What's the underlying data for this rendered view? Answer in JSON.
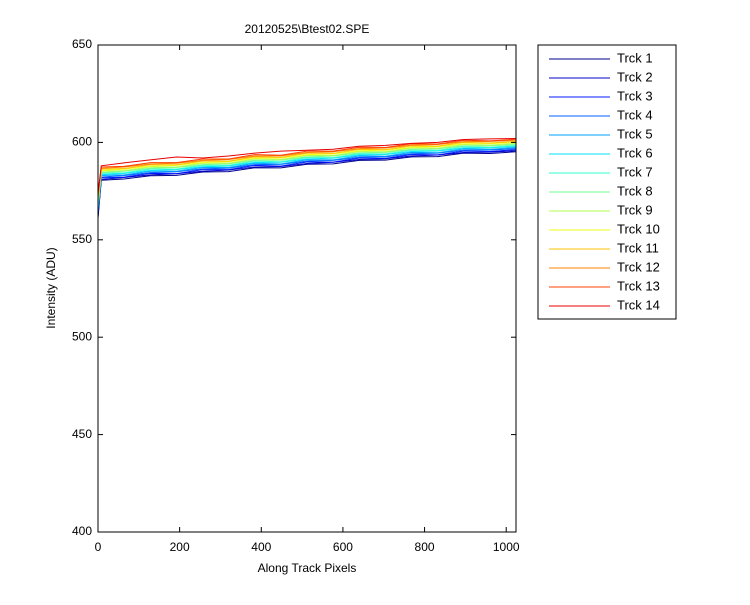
{
  "chart_data": {
    "type": "line",
    "title": "20120525\\Btest02.SPE",
    "x_label": "Along Track Pixels",
    "y_label": "Intensity (ADU)",
    "x": [
      0,
      8,
      64,
      128,
      192,
      256,
      320,
      384,
      448,
      512,
      576,
      640,
      704,
      768,
      832,
      896,
      960,
      1024
    ],
    "xlim": [
      0,
      1024
    ],
    "xticks": [
      0,
      200,
      400,
      600,
      800,
      1000
    ],
    "ylim": [
      400,
      650
    ],
    "yticks": [
      400,
      450,
      500,
      550,
      600,
      650
    ],
    "grid": false,
    "legend_position": "outside-right",
    "series": [
      {
        "name": "Trck 1",
        "color": "#00008f",
        "values": [
          561,
          580.6,
          581.2,
          582.9,
          583.1,
          584.8,
          585.0,
          587.0,
          586.9,
          588.8,
          589.0,
          590.8,
          590.9,
          592.6,
          592.7,
          594.5,
          594.3,
          595.2
        ]
      },
      {
        "name": "Trck 2",
        "color": "#0000c8",
        "values": [
          562,
          581.0,
          582.0,
          583.3,
          583.9,
          585.2,
          585.8,
          587.4,
          587.6,
          589.2,
          589.8,
          591.2,
          591.6,
          593.0,
          593.5,
          594.8,
          595.0,
          595.7
        ]
      },
      {
        "name": "Trck 3",
        "color": "#0018ff",
        "values": [
          563,
          581.8,
          582.2,
          584.1,
          584.0,
          586.0,
          586.0,
          588.2,
          587.8,
          590.0,
          589.9,
          592.0,
          591.8,
          593.8,
          593.6,
          595.6,
          595.3,
          596.3
        ]
      },
      {
        "name": "Trck 4",
        "color": "#0060ff",
        "values": [
          564,
          582.2,
          583.0,
          584.5,
          584.9,
          586.4,
          586.8,
          588.6,
          588.7,
          590.4,
          590.8,
          592.4,
          592.6,
          594.2,
          594.5,
          596.0,
          596.1,
          596.8
        ]
      },
      {
        "name": "Trck 5",
        "color": "#00a0ff",
        "values": [
          565,
          583.0,
          583.3,
          585.2,
          585.2,
          587.1,
          587.1,
          589.3,
          588.9,
          591.1,
          591.0,
          593.1,
          592.9,
          594.9,
          594.7,
          596.7,
          596.4,
          597.4
        ]
      },
      {
        "name": "Trck 6",
        "color": "#00e0ff",
        "values": [
          566,
          583.4,
          584.1,
          585.6,
          586.0,
          587.5,
          587.9,
          589.7,
          589.8,
          591.5,
          591.9,
          593.5,
          593.8,
          595.3,
          595.6,
          597.1,
          597.2,
          597.9
        ]
      },
      {
        "name": "Trck 7",
        "color": "#30ffcf",
        "values": [
          567,
          584.1,
          584.4,
          586.3,
          586.3,
          588.2,
          588.2,
          590.4,
          590.1,
          592.2,
          592.2,
          594.2,
          594.1,
          596.0,
          595.9,
          597.8,
          597.5,
          598.4
        ]
      },
      {
        "name": "Trck 8",
        "color": "#70ff8f",
        "values": [
          568,
          584.5,
          585.2,
          586.7,
          587.1,
          588.6,
          589.0,
          590.8,
          590.9,
          592.6,
          593.0,
          594.6,
          594.9,
          596.4,
          596.7,
          598.2,
          598.3,
          598.9
        ]
      },
      {
        "name": "Trck 9",
        "color": "#b0ff50",
        "values": [
          569,
          585.2,
          585.5,
          587.4,
          587.4,
          589.3,
          589.3,
          591.5,
          591.2,
          593.3,
          593.3,
          595.3,
          595.2,
          597.1,
          597.0,
          598.9,
          598.6,
          599.5
        ]
      },
      {
        "name": "Trck 10",
        "color": "#f0ff10",
        "values": [
          570,
          585.6,
          586.3,
          587.8,
          588.2,
          589.7,
          590.1,
          591.9,
          592.0,
          593.7,
          594.1,
          595.7,
          596.0,
          597.5,
          597.8,
          599.3,
          599.4,
          600.0
        ]
      },
      {
        "name": "Trck 11",
        "color": "#ffc000",
        "values": [
          571,
          586.3,
          586.6,
          588.5,
          588.5,
          590.4,
          590.4,
          592.6,
          592.3,
          594.4,
          594.4,
          596.4,
          596.3,
          598.2,
          598.1,
          600.0,
          599.7,
          600.5
        ]
      },
      {
        "name": "Trck 12",
        "color": "#ff8000",
        "values": [
          572,
          586.7,
          587.4,
          588.9,
          589.3,
          590.8,
          591.2,
          593.0,
          593.1,
          594.8,
          595.2,
          596.8,
          597.1,
          598.6,
          598.9,
          600.4,
          600.5,
          601.1
        ]
      },
      {
        "name": "Trck 13",
        "color": "#ff4000",
        "values": [
          573,
          587.4,
          587.7,
          589.6,
          589.6,
          591.5,
          591.5,
          593.7,
          593.4,
          595.5,
          595.5,
          597.5,
          597.4,
          599.3,
          599.2,
          601.1,
          600.8,
          601.6
        ]
      },
      {
        "name": "Trck 14",
        "color": "#e80000",
        "values": [
          574,
          588.0,
          589.5,
          591.0,
          592.5,
          592.0,
          593.0,
          594.5,
          595.5,
          596.0,
          596.5,
          598.0,
          598.5,
          599.5,
          600.0,
          601.5,
          601.8,
          602.0
        ]
      }
    ]
  }
}
